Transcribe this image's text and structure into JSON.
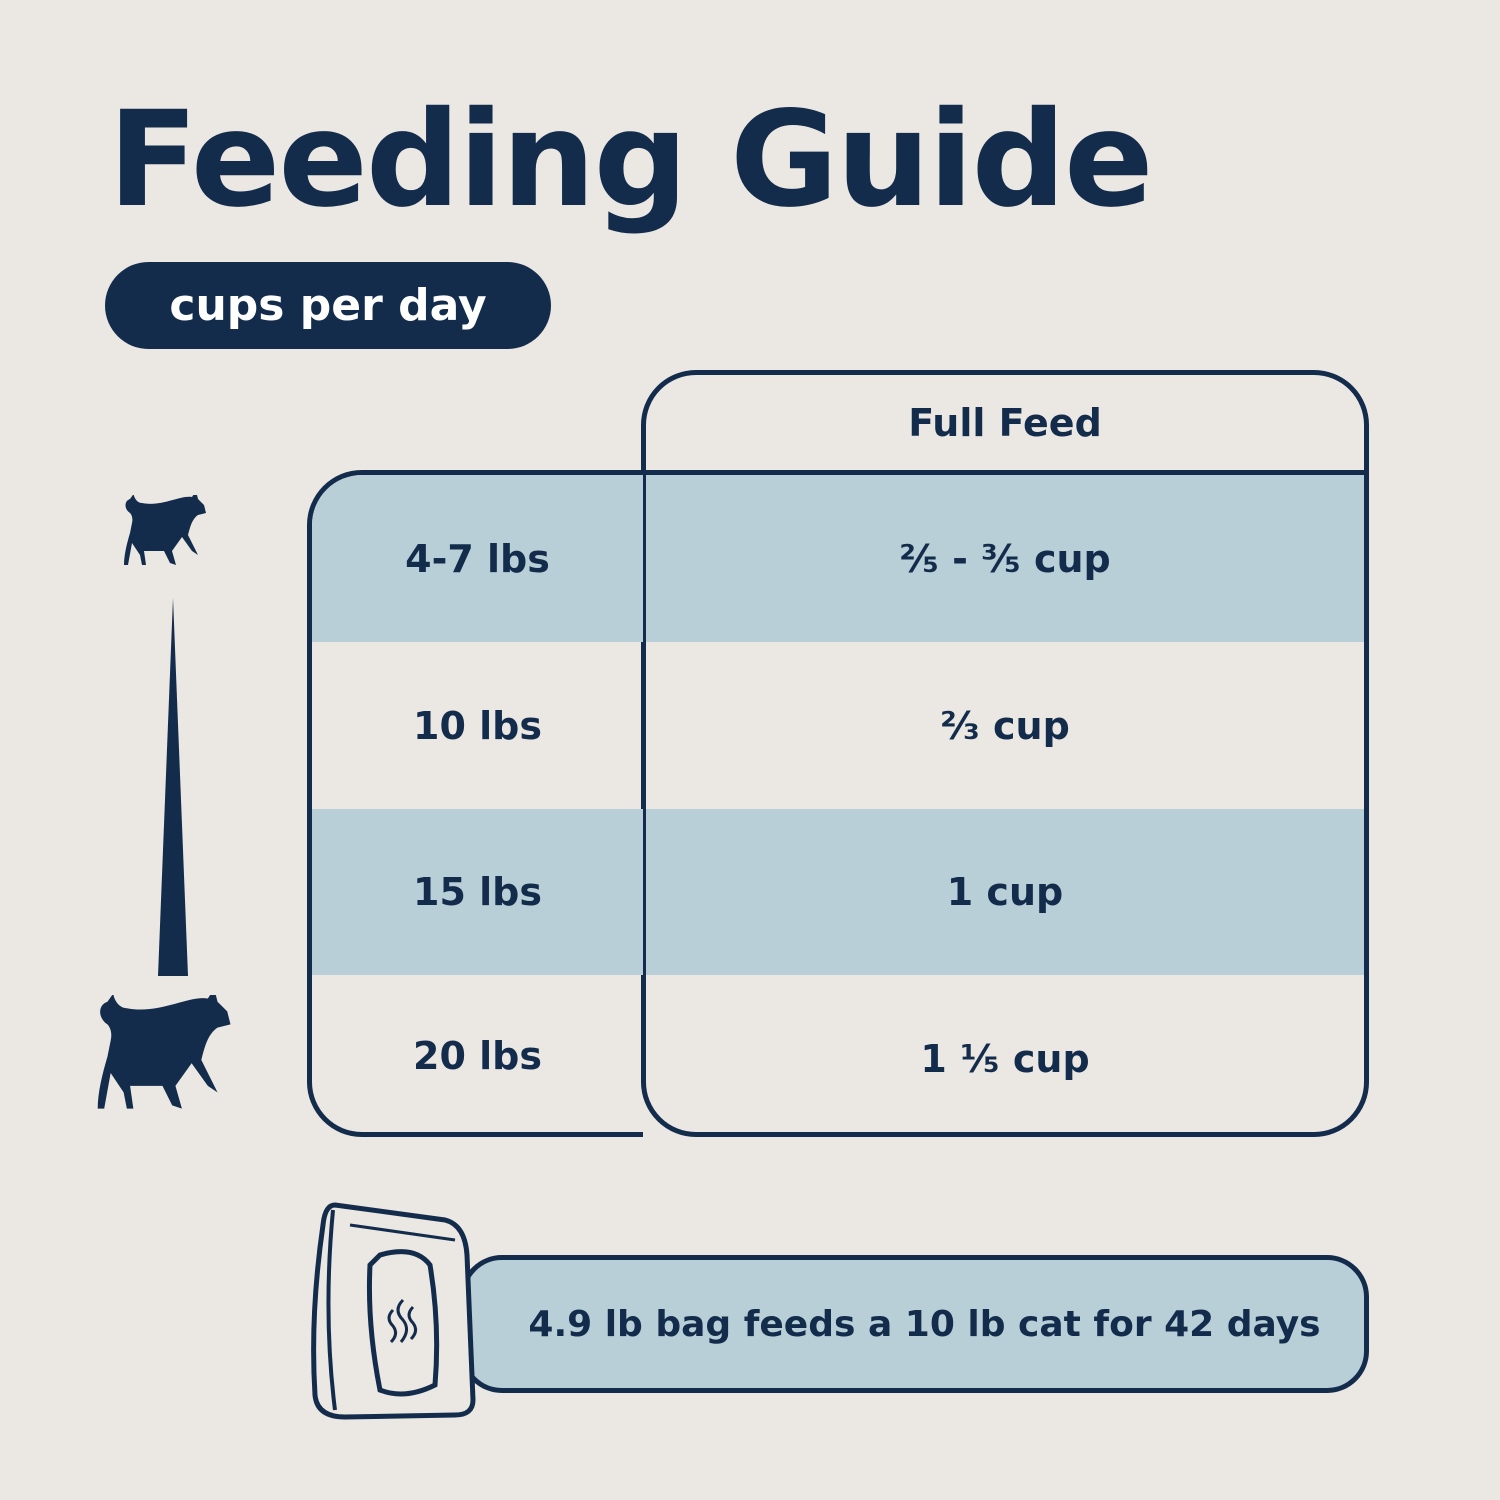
{
  "title": "Feeding Guide",
  "unit_pill": "cups per day",
  "table": {
    "column_header": "Full Feed",
    "rows": [
      {
        "weight": "4-7 lbs",
        "amount": "²⁄₅ - ³⁄₅ cup"
      },
      {
        "weight": "10 lbs",
        "amount": "²⁄₃ cup"
      },
      {
        "weight": "15 lbs",
        "amount": "1 cup"
      },
      {
        "weight": "20 lbs",
        "amount": "1 ¹⁄₅ cup"
      }
    ]
  },
  "banner": "4.9 lb bag feeds a 10 lb cat for 42 days",
  "colors": {
    "navy": "#142c4c",
    "light_blue": "#b8cfd8",
    "background": "#ebe7e3"
  },
  "icons": [
    "small-cat-icon",
    "large-cat-icon",
    "size-scale-wedge-icon",
    "food-bag-icon"
  ]
}
